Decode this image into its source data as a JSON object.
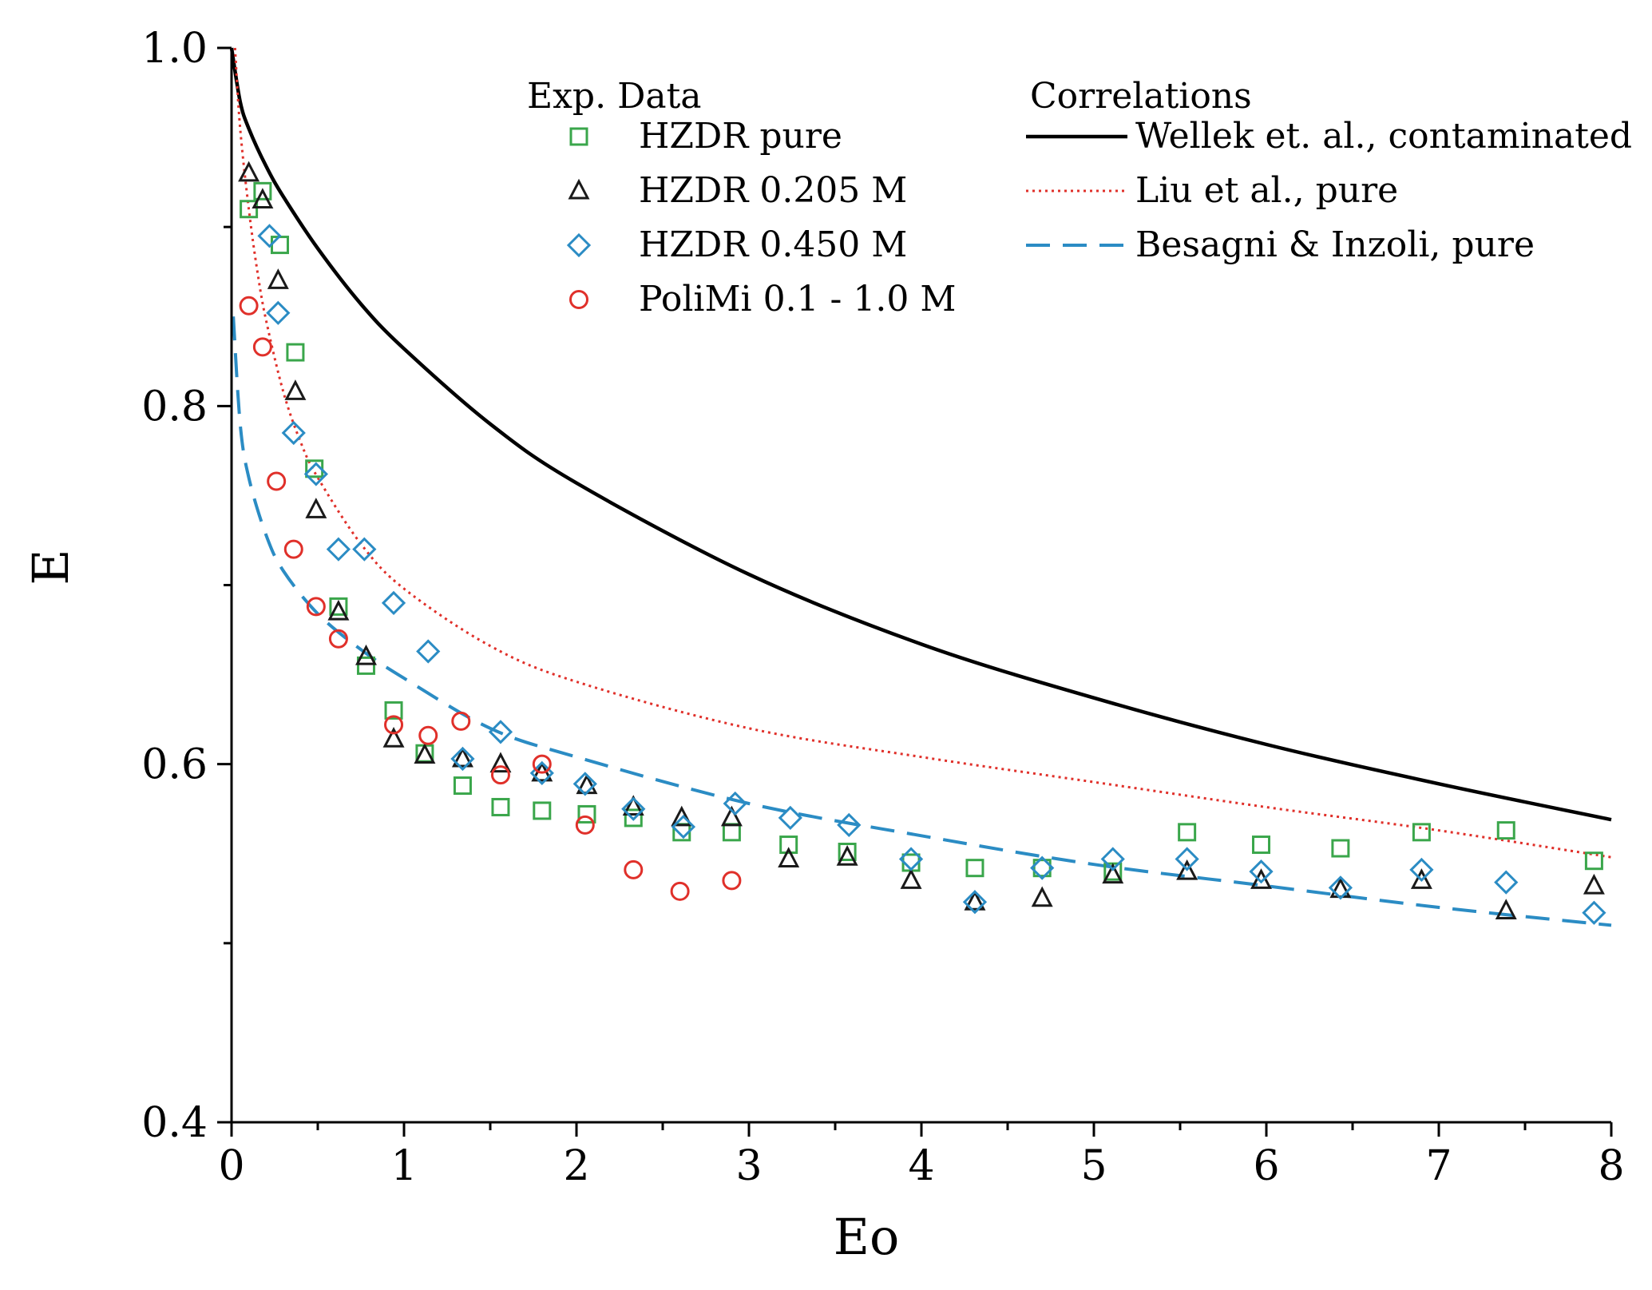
{
  "chart_data": {
    "type": "scatter",
    "xlabel": "Eo",
    "ylabel": "E",
    "xlim": [
      0,
      8
    ],
    "ylim": [
      0.4,
      1.0
    ],
    "xticks": [
      "0",
      "1",
      "2",
      "3",
      "4",
      "5",
      "6",
      "7",
      "8"
    ],
    "yticks": [
      "0.4",
      "0.6",
      "0.8",
      "1.0"
    ],
    "legend_groups": {
      "experimental": "Exp. Data",
      "correlations": "Correlations"
    },
    "scatter_series": [
      {
        "name": "HZDR pure",
        "marker": "square",
        "color": "#3aa64b",
        "points": [
          [
            0.1,
            0.91
          ],
          [
            0.18,
            0.92
          ],
          [
            0.28,
            0.89
          ],
          [
            0.37,
            0.83
          ],
          [
            0.48,
            0.765
          ],
          [
            0.62,
            0.688
          ],
          [
            0.78,
            0.655
          ],
          [
            0.94,
            0.63
          ],
          [
            1.12,
            0.606
          ],
          [
            1.34,
            0.588
          ],
          [
            1.56,
            0.576
          ],
          [
            1.8,
            0.574
          ],
          [
            2.06,
            0.572
          ],
          [
            2.33,
            0.57
          ],
          [
            2.61,
            0.562
          ],
          [
            2.9,
            0.562
          ],
          [
            3.23,
            0.555
          ],
          [
            3.57,
            0.551
          ],
          [
            3.94,
            0.545
          ],
          [
            4.31,
            0.542
          ],
          [
            4.7,
            0.542
          ],
          [
            5.11,
            0.54
          ],
          [
            5.54,
            0.562
          ],
          [
            5.97,
            0.555
          ],
          [
            6.43,
            0.553
          ],
          [
            6.9,
            0.562
          ],
          [
            7.39,
            0.563
          ],
          [
            7.9,
            0.546
          ]
        ]
      },
      {
        "name": "HZDR 0.205 M",
        "marker": "triangle",
        "color": "#1a1a1a",
        "points": [
          [
            0.1,
            0.93
          ],
          [
            0.18,
            0.915
          ],
          [
            0.27,
            0.87
          ],
          [
            0.37,
            0.808
          ],
          [
            0.49,
            0.742
          ],
          [
            0.62,
            0.685
          ],
          [
            0.78,
            0.66
          ],
          [
            0.94,
            0.614
          ],
          [
            1.12,
            0.605
          ],
          [
            1.34,
            0.603
          ],
          [
            1.56,
            0.6
          ],
          [
            1.8,
            0.595
          ],
          [
            2.06,
            0.588
          ],
          [
            2.33,
            0.576
          ],
          [
            2.61,
            0.57
          ],
          [
            2.9,
            0.57
          ],
          [
            3.23,
            0.547
          ],
          [
            3.57,
            0.548
          ],
          [
            3.94,
            0.535
          ],
          [
            4.31,
            0.523
          ],
          [
            4.7,
            0.525
          ],
          [
            5.11,
            0.538
          ],
          [
            5.54,
            0.54
          ],
          [
            5.97,
            0.535
          ],
          [
            6.43,
            0.53
          ],
          [
            6.9,
            0.535
          ],
          [
            7.39,
            0.518
          ],
          [
            7.9,
            0.532
          ]
        ]
      },
      {
        "name": "HZDR 0.450 M",
        "marker": "diamond",
        "color": "#2b8cc4",
        "points": [
          [
            0.22,
            0.895
          ],
          [
            0.27,
            0.852
          ],
          [
            0.36,
            0.785
          ],
          [
            0.49,
            0.762
          ],
          [
            0.62,
            0.72
          ],
          [
            0.77,
            0.72
          ],
          [
            0.94,
            0.69
          ],
          [
            1.14,
            0.663
          ],
          [
            1.34,
            0.603
          ],
          [
            1.56,
            0.618
          ],
          [
            1.8,
            0.595
          ],
          [
            2.05,
            0.589
          ],
          [
            2.33,
            0.575
          ],
          [
            2.62,
            0.565
          ],
          [
            2.92,
            0.578
          ],
          [
            3.24,
            0.57
          ],
          [
            3.58,
            0.566
          ],
          [
            3.94,
            0.547
          ],
          [
            4.31,
            0.523
          ],
          [
            4.7,
            0.542
          ],
          [
            5.11,
            0.547
          ],
          [
            5.54,
            0.547
          ],
          [
            5.97,
            0.54
          ],
          [
            6.43,
            0.531
          ],
          [
            6.9,
            0.541
          ],
          [
            7.39,
            0.534
          ],
          [
            7.9,
            0.517
          ]
        ]
      },
      {
        "name": "PoliMi 0.1 - 1.0 M",
        "marker": "circle",
        "color": "#e0302a",
        "points": [
          [
            0.1,
            0.856
          ],
          [
            0.18,
            0.833
          ],
          [
            0.26,
            0.758
          ],
          [
            0.36,
            0.72
          ],
          [
            0.49,
            0.688
          ],
          [
            0.62,
            0.67
          ],
          [
            0.94,
            0.622
          ],
          [
            1.14,
            0.616
          ],
          [
            1.33,
            0.624
          ],
          [
            1.56,
            0.594
          ],
          [
            1.8,
            0.6
          ],
          [
            2.05,
            0.566
          ],
          [
            2.33,
            0.541
          ],
          [
            2.6,
            0.529
          ],
          [
            2.9,
            0.535
          ]
        ]
      }
    ],
    "line_series": [
      {
        "name": "Wellek et. al., contaminated",
        "style": "solid",
        "color": "#000000",
        "points": [
          [
            0,
            1.0
          ],
          [
            0.05,
            0.97
          ],
          [
            0.1,
            0.955
          ],
          [
            0.2,
            0.934
          ],
          [
            0.3,
            0.917
          ],
          [
            0.5,
            0.888
          ],
          [
            0.75,
            0.857
          ],
          [
            1.0,
            0.832
          ],
          [
            1.5,
            0.79
          ],
          [
            2.0,
            0.757
          ],
          [
            3.0,
            0.706
          ],
          [
            4.0,
            0.667
          ],
          [
            5.0,
            0.637
          ],
          [
            6.0,
            0.611
          ],
          [
            7.0,
            0.589
          ],
          [
            8.0,
            0.569
          ]
        ]
      },
      {
        "name": "Liu et al., pure",
        "style": "dotted",
        "color": "#e0302a",
        "points": [
          [
            0.02,
            1.0
          ],
          [
            0.05,
            0.955
          ],
          [
            0.1,
            0.91
          ],
          [
            0.15,
            0.875
          ],
          [
            0.2,
            0.848
          ],
          [
            0.3,
            0.808
          ],
          [
            0.4,
            0.78
          ],
          [
            0.5,
            0.76
          ],
          [
            0.75,
            0.723
          ],
          [
            1.0,
            0.698
          ],
          [
            1.5,
            0.666
          ],
          [
            2.0,
            0.646
          ],
          [
            3.0,
            0.62
          ],
          [
            4.0,
            0.604
          ],
          [
            5.0,
            0.59
          ],
          [
            6.0,
            0.576
          ],
          [
            7.0,
            0.563
          ],
          [
            8.0,
            0.548
          ]
        ]
      },
      {
        "name": "Besagni & Inzoli, pure",
        "style": "dashed",
        "color": "#2b8cc4",
        "points": [
          [
            0.01,
            0.85
          ],
          [
            0.05,
            0.79
          ],
          [
            0.1,
            0.76
          ],
          [
            0.2,
            0.728
          ],
          [
            0.3,
            0.708
          ],
          [
            0.5,
            0.684
          ],
          [
            0.75,
            0.664
          ],
          [
            1.0,
            0.648
          ],
          [
            1.5,
            0.62
          ],
          [
            2.0,
            0.604
          ],
          [
            3.0,
            0.578
          ],
          [
            4.0,
            0.56
          ],
          [
            5.0,
            0.544
          ],
          [
            6.0,
            0.532
          ],
          [
            7.0,
            0.52
          ],
          [
            8.0,
            0.51
          ]
        ]
      }
    ]
  }
}
